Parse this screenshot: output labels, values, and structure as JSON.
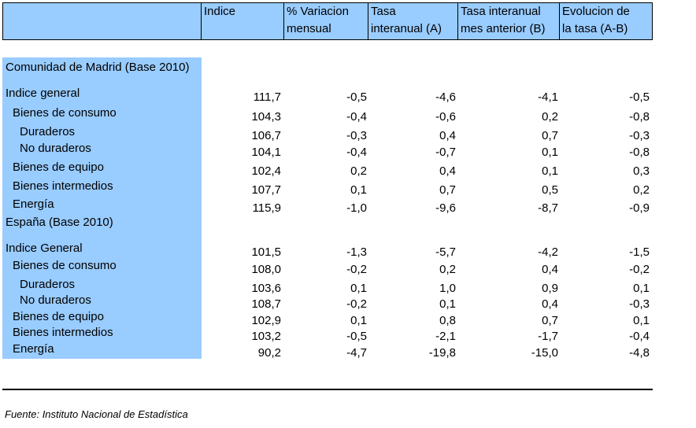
{
  "headers": [
    {
      "l1": "Indice",
      "l2": ""
    },
    {
      "l1": "% Variacion",
      "l2": "mensual"
    },
    {
      "l1": "Tasa",
      "l2": "interanual (A)"
    },
    {
      "l1": "Tasa interanual",
      "l2": "mes anterior (B)"
    },
    {
      "l1": "Evolucion de",
      "l2": "la tasa (A-B)"
    }
  ],
  "sections": [
    {
      "title": "Comunidad de Madrid (Base 2010)",
      "rows": [
        {
          "label": "Indice general",
          "values": [
            "111,7",
            "-0,5",
            "-4,6",
            "-4,1",
            "-0,5"
          ]
        },
        {
          "label": "Bienes de consumo",
          "values": [
            "104,3",
            "-0,4",
            "-0,6",
            "0,2",
            "-0,8"
          ]
        },
        {
          "label": "Duraderos",
          "values": [
            "106,7",
            "-0,3",
            "0,4",
            "0,7",
            "-0,3"
          ]
        },
        {
          "label": "No duraderos",
          "values": [
            "104,1",
            "-0,4",
            "-0,7",
            "0,1",
            "-0,8"
          ]
        },
        {
          "label": "Bienes de equipo",
          "values": [
            "102,4",
            "0,2",
            "0,4",
            "0,1",
            "0,3"
          ]
        },
        {
          "label": "Bienes intermedios",
          "values": [
            "107,7",
            "0,1",
            "0,7",
            "0,5",
            "0,2"
          ]
        },
        {
          "label": "Energía",
          "values": [
            "115,9",
            "-1,0",
            "-9,6",
            "-8,7",
            "-0,9"
          ]
        }
      ]
    },
    {
      "title": "España (Base 2010)",
      "rows": [
        {
          "label": "Indice General",
          "values": [
            "101,5",
            "-1,3",
            "-5,7",
            "-4,2",
            "-1,5"
          ]
        },
        {
          "label": "Bienes de consumo",
          "values": [
            "108,0",
            "-0,2",
            "0,2",
            "0,4",
            "-0,2"
          ]
        },
        {
          "label": "Duraderos",
          "values": [
            "103,6",
            "0,1",
            "1,0",
            "0,9",
            "0,1"
          ]
        },
        {
          "label": "No duraderos",
          "values": [
            "108,7",
            "-0,2",
            "0,1",
            "0,4",
            "-0,3"
          ]
        },
        {
          "label": "Bienes de equipo",
          "values": [
            "102,9",
            "0,1",
            "0,8",
            "0,7",
            "0,1"
          ]
        },
        {
          "label": "Bienes intermedios",
          "values": [
            "103,2",
            "-0,5",
            "-2,1",
            "-1,7",
            "-0,4"
          ]
        },
        {
          "label": "Energía",
          "values": [
            "90,2",
            "-4,7",
            "-19,8",
            "-15,0",
            "-4,8"
          ]
        }
      ]
    }
  ],
  "source": "Fuente: Instituto Nacional de Estadística"
}
